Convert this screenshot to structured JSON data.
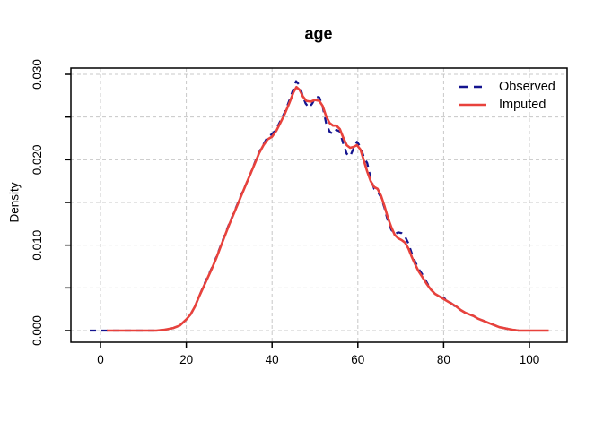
{
  "chart_data": {
    "type": "line",
    "title": "age",
    "xlabel": "",
    "ylabel": "Density",
    "xlim": [
      -6.9,
      108.8
    ],
    "ylim": [
      -0.0014,
      0.0307
    ],
    "grid": "dashed light-gray at every tick",
    "x_ticks": [
      {
        "v": 0,
        "label": "0"
      },
      {
        "v": 20,
        "label": "20"
      },
      {
        "v": 40,
        "label": "40"
      },
      {
        "v": 60,
        "label": "60"
      },
      {
        "v": 80,
        "label": "80"
      },
      {
        "v": 100,
        "label": "100"
      }
    ],
    "y_ticks": [
      {
        "v": 0.0,
        "label": "0.000"
      },
      {
        "v": 0.005,
        "label": ""
      },
      {
        "v": 0.01,
        "label": "0.010"
      },
      {
        "v": 0.015,
        "label": ""
      },
      {
        "v": 0.02,
        "label": "0.020"
      },
      {
        "v": 0.025,
        "label": ""
      },
      {
        "v": 0.03,
        "label": "0.030"
      }
    ],
    "colors": {
      "observed": "#14148F",
      "imputed": "#E8423C",
      "grid": "#C8C8C8",
      "frame": "#000000"
    },
    "legend": {
      "position": "top-right",
      "entries": [
        {
          "label": "Observed",
          "color": "#14148F",
          "dashed": true
        },
        {
          "label": "Imputed",
          "color": "#E8423C",
          "dashed": false
        }
      ]
    },
    "series": [
      {
        "name": "Observed",
        "style": "dashed",
        "color": "#14148F",
        "points": [
          [
            -2.5,
            0
          ],
          [
            0,
            0
          ],
          [
            5,
            0
          ],
          [
            10,
            0
          ],
          [
            13,
            0
          ],
          [
            15,
            0.0001
          ],
          [
            17,
            0.0003
          ],
          [
            18.5,
            0.0006
          ],
          [
            20,
            0.0013
          ],
          [
            21,
            0.0019
          ],
          [
            22,
            0.0028
          ],
          [
            23,
            0.004
          ],
          [
            24,
            0.0052
          ],
          [
            25,
            0.0063
          ],
          [
            26,
            0.0074
          ],
          [
            27,
            0.0086
          ],
          [
            28,
            0.0099
          ],
          [
            29,
            0.0112
          ],
          [
            30,
            0.0125
          ],
          [
            31,
            0.0137
          ],
          [
            32,
            0.0149
          ],
          [
            33,
            0.0161
          ],
          [
            34,
            0.0172
          ],
          [
            35,
            0.0184
          ],
          [
            36,
            0.0197
          ],
          [
            37,
            0.0209
          ],
          [
            38,
            0.0218
          ],
          [
            39,
            0.0227
          ],
          [
            40,
            0.023
          ],
          [
            41,
            0.0236
          ],
          [
            42,
            0.0246
          ],
          [
            43,
            0.0256
          ],
          [
            44,
            0.0269
          ],
          [
            45,
            0.0283
          ],
          [
            45.6,
            0.0292
          ],
          [
            46.3,
            0.0288
          ],
          [
            47,
            0.0277
          ],
          [
            47.8,
            0.0266
          ],
          [
            48.6,
            0.0261
          ],
          [
            49.4,
            0.0266
          ],
          [
            50.2,
            0.0274
          ],
          [
            51,
            0.0273
          ],
          [
            51.8,
            0.0262
          ],
          [
            52.6,
            0.0243
          ],
          [
            53.4,
            0.0233
          ],
          [
            54.2,
            0.023
          ],
          [
            55,
            0.0235
          ],
          [
            55.8,
            0.0233
          ],
          [
            56.6,
            0.0219
          ],
          [
            57.4,
            0.0207
          ],
          [
            58.2,
            0.0204
          ],
          [
            59,
            0.0213
          ],
          [
            59.8,
            0.0221
          ],
          [
            60.6,
            0.0215
          ],
          [
            61.4,
            0.0203
          ],
          [
            62.2,
            0.0196
          ],
          [
            63,
            0.0178
          ],
          [
            63.8,
            0.0166
          ],
          [
            64.6,
            0.0163
          ],
          [
            65.4,
            0.0156
          ],
          [
            66.2,
            0.0144
          ],
          [
            67,
            0.0128
          ],
          [
            67.8,
            0.0118
          ],
          [
            68.6,
            0.0113
          ],
          [
            69.4,
            0.0115
          ],
          [
            70.2,
            0.0114
          ],
          [
            71,
            0.011
          ],
          [
            71.8,
            0.0102
          ],
          [
            72.6,
            0.009
          ],
          [
            73.4,
            0.008
          ],
          [
            74.2,
            0.0072
          ],
          [
            75,
            0.0066
          ],
          [
            76,
            0.0057
          ],
          [
            77,
            0.0048
          ],
          [
            78,
            0.0043
          ],
          [
            79,
            0.004
          ],
          [
            80,
            0.0038
          ],
          [
            81,
            0.0035
          ],
          [
            82,
            0.0031
          ],
          [
            83,
            0.0027
          ],
          [
            84,
            0.0024
          ],
          [
            85,
            0.0021
          ],
          [
            86,
            0.0019
          ],
          [
            87,
            0.0017
          ],
          [
            88,
            0.0014
          ],
          [
            89,
            0.0012
          ],
          [
            90,
            0.001
          ],
          [
            91,
            0.0008
          ],
          [
            92,
            0.0006
          ],
          [
            93,
            0.0004
          ],
          [
            94,
            0.0003
          ],
          [
            95,
            0.0002
          ],
          [
            96,
            0.0001
          ],
          [
            97.5,
            0
          ]
        ]
      },
      {
        "name": "Imputed",
        "style": "solid",
        "color": "#E8423C",
        "points": [
          [
            1.5,
            0
          ],
          [
            5,
            0
          ],
          [
            10,
            0
          ],
          [
            13,
            0
          ],
          [
            15,
            0.0001
          ],
          [
            17,
            0.0003
          ],
          [
            18.5,
            0.0006
          ],
          [
            20,
            0.0013
          ],
          [
            21,
            0.0019
          ],
          [
            22,
            0.0028
          ],
          [
            23,
            0.004
          ],
          [
            24,
            0.0051
          ],
          [
            25,
            0.0062
          ],
          [
            26,
            0.0073
          ],
          [
            27,
            0.0085
          ],
          [
            28,
            0.0098
          ],
          [
            29,
            0.0111
          ],
          [
            30,
            0.0124
          ],
          [
            31,
            0.0136
          ],
          [
            32,
            0.0148
          ],
          [
            33,
            0.016
          ],
          [
            34,
            0.0172
          ],
          [
            35,
            0.0184
          ],
          [
            36,
            0.0196
          ],
          [
            37,
            0.0208
          ],
          [
            38,
            0.0217
          ],
          [
            39,
            0.0224
          ],
          [
            40,
            0.0227
          ],
          [
            41,
            0.0234
          ],
          [
            42,
            0.0244
          ],
          [
            43,
            0.0254
          ],
          [
            44,
            0.0266
          ],
          [
            45,
            0.0279
          ],
          [
            45.7,
            0.0285
          ],
          [
            46.4,
            0.0282
          ],
          [
            47.2,
            0.0274
          ],
          [
            48,
            0.0269
          ],
          [
            49,
            0.0268
          ],
          [
            50,
            0.027
          ],
          [
            51,
            0.0269
          ],
          [
            51.8,
            0.0263
          ],
          [
            52.6,
            0.0251
          ],
          [
            53.4,
            0.0243
          ],
          [
            54.2,
            0.024
          ],
          [
            55,
            0.024
          ],
          [
            55.8,
            0.0236
          ],
          [
            56.6,
            0.0226
          ],
          [
            57.4,
            0.0217
          ],
          [
            58.2,
            0.0214
          ],
          [
            59,
            0.0215
          ],
          [
            59.8,
            0.0217
          ],
          [
            60.6,
            0.0212
          ],
          [
            61.4,
            0.0199
          ],
          [
            62.2,
            0.0186
          ],
          [
            63,
            0.0175
          ],
          [
            63.8,
            0.0168
          ],
          [
            64.6,
            0.0166
          ],
          [
            65.4,
            0.0158
          ],
          [
            66.2,
            0.0146
          ],
          [
            67,
            0.0132
          ],
          [
            67.8,
            0.0121
          ],
          [
            68.6,
            0.0112
          ],
          [
            69.4,
            0.0108
          ],
          [
            70.2,
            0.0106
          ],
          [
            71,
            0.0103
          ],
          [
            71.8,
            0.0096
          ],
          [
            72.6,
            0.0086
          ],
          [
            73.4,
            0.0077
          ],
          [
            74.2,
            0.0069
          ],
          [
            75,
            0.0063
          ],
          [
            76,
            0.0055
          ],
          [
            77,
            0.0048
          ],
          [
            78,
            0.0043
          ],
          [
            79,
            0.004
          ],
          [
            80,
            0.0037
          ],
          [
            81,
            0.0034
          ],
          [
            82,
            0.0031
          ],
          [
            83,
            0.0028
          ],
          [
            84,
            0.0024
          ],
          [
            85,
            0.0021
          ],
          [
            86,
            0.0019
          ],
          [
            87,
            0.0017
          ],
          [
            88,
            0.0014
          ],
          [
            89,
            0.0012
          ],
          [
            90,
            0.001
          ],
          [
            91,
            0.0008
          ],
          [
            92,
            0.0006
          ],
          [
            93,
            0.0004
          ],
          [
            94,
            0.0003
          ],
          [
            95,
            0.0002
          ],
          [
            96,
            0.0001
          ],
          [
            97.5,
            0
          ],
          [
            100,
            0
          ],
          [
            104.5,
            0
          ]
        ]
      }
    ]
  }
}
